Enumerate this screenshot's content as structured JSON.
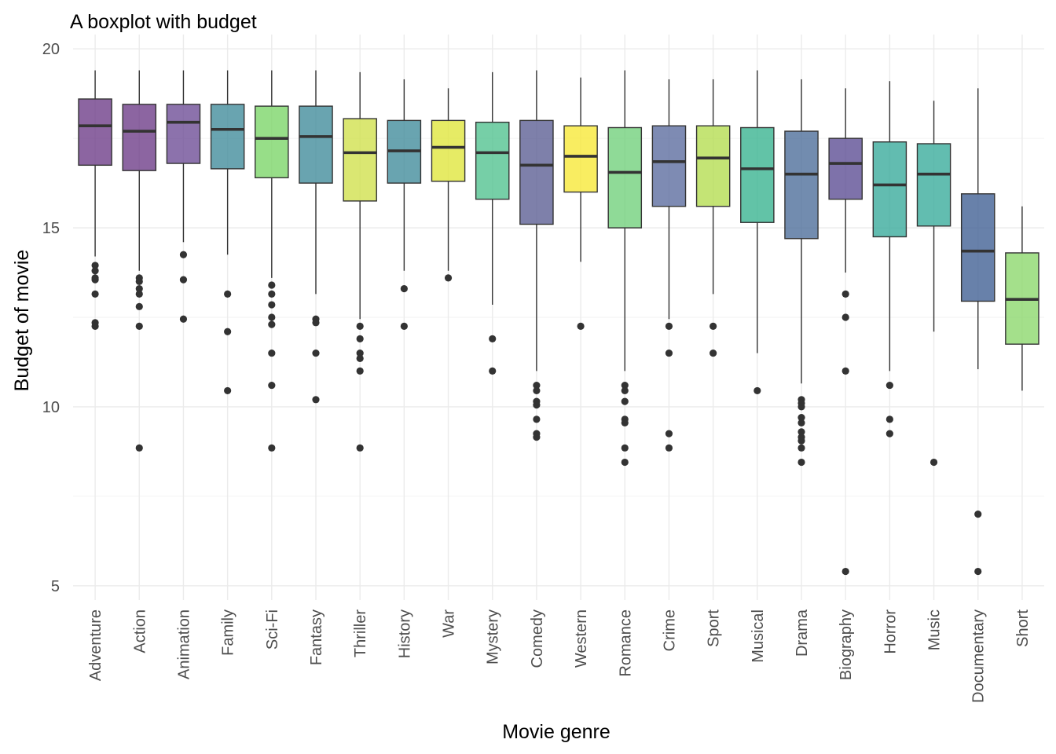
{
  "chart_data": {
    "type": "boxplot",
    "title": "A boxplot with budget",
    "xlabel": "Movie genre",
    "ylabel": "Budget of movie",
    "ylim": [
      4.6,
      20.4
    ],
    "yticks": [
      5,
      10,
      15,
      20
    ],
    "grid": true,
    "categories": [
      "Adventure",
      "Action",
      "Animation",
      "Family",
      "Sci-Fi",
      "Fantasy",
      "Thriller",
      "History",
      "War",
      "Mystery",
      "Comedy",
      "Western",
      "Romance",
      "Crime",
      "Sport",
      "Musical",
      "Drama",
      "Biography",
      "Horror",
      "Music",
      "Documentary",
      "Short"
    ],
    "boxes": [
      {
        "genre": "Adventure",
        "color": "#6b3a87",
        "whisker_low": 14.2,
        "q1": 16.75,
        "median": 17.85,
        "q3": 18.6,
        "whisker_high": 19.4,
        "outliers": [
          13.95,
          13.8,
          13.6,
          13.55,
          13.15,
          12.35,
          12.25
        ]
      },
      {
        "genre": "Action",
        "color": "#6b3a87",
        "whisker_low": 13.8,
        "q1": 16.6,
        "median": 17.7,
        "q3": 18.45,
        "whisker_high": 19.4,
        "outliers": [
          13.6,
          13.5,
          13.3,
          13.15,
          12.8,
          12.25,
          8.85
        ]
      },
      {
        "genre": "Animation",
        "color": "#6b4a95",
        "whisker_low": 14.6,
        "q1": 16.8,
        "median": 17.95,
        "q3": 18.45,
        "whisker_high": 19.4,
        "outliers": [
          14.25,
          13.55,
          12.45
        ]
      },
      {
        "genre": "Family",
        "color": "#3f8a9a",
        "whisker_low": 14.25,
        "q1": 16.65,
        "median": 17.75,
        "q3": 18.45,
        "whisker_high": 19.4,
        "outliers": [
          13.15,
          12.1,
          10.45
        ]
      },
      {
        "genre": "Sci-Fi",
        "color": "#7ad567",
        "whisker_low": 13.6,
        "q1": 16.4,
        "median": 17.5,
        "q3": 18.4,
        "whisker_high": 19.4,
        "outliers": [
          13.4,
          13.15,
          12.85,
          12.5,
          12.3,
          11.5,
          10.6,
          8.85
        ]
      },
      {
        "genre": "Fantasy",
        "color": "#3f8a9a",
        "whisker_low": 13.15,
        "q1": 16.25,
        "median": 17.55,
        "q3": 18.4,
        "whisker_high": 19.4,
        "outliers": [
          12.45,
          12.35,
          11.5,
          10.2
        ]
      },
      {
        "genre": "Thriller",
        "color": "#cfe04a",
        "whisker_low": 12.45,
        "q1": 15.75,
        "median": 17.1,
        "q3": 18.05,
        "whisker_high": 19.35,
        "outliers": [
          12.25,
          11.9,
          11.5,
          11.35,
          11.0,
          8.85
        ]
      },
      {
        "genre": "History",
        "color": "#3f8a9a",
        "whisker_low": 13.8,
        "q1": 16.25,
        "median": 17.15,
        "q3": 18.0,
        "whisker_high": 19.15,
        "outliers": [
          13.3,
          12.25
        ]
      },
      {
        "genre": "War",
        "color": "#dfe63a",
        "whisker_low": 13.8,
        "q1": 16.3,
        "median": 17.25,
        "q3": 18.0,
        "whisker_high": 18.9,
        "outliers": [
          13.6
        ]
      },
      {
        "genre": "Mystery",
        "color": "#4fc28e",
        "whisker_low": 12.85,
        "q1": 15.8,
        "median": 17.1,
        "q3": 17.95,
        "whisker_high": 19.35,
        "outliers": [
          11.9,
          11.0
        ]
      },
      {
        "genre": "Comedy",
        "color": "#5a5c92",
        "whisker_low": 11.0,
        "q1": 15.1,
        "median": 16.75,
        "q3": 18.0,
        "whisker_high": 19.4,
        "outliers": [
          10.6,
          10.45,
          10.15,
          10.05,
          9.65,
          9.25,
          9.15
        ]
      },
      {
        "genre": "Western",
        "color": "#f7e835",
        "whisker_low": 14.05,
        "q1": 16.0,
        "median": 17.0,
        "q3": 17.85,
        "whisker_high": 19.2,
        "outliers": [
          12.25
        ]
      },
      {
        "genre": "Romance",
        "color": "#6fcf7a",
        "whisker_low": 11.0,
        "q1": 15.0,
        "median": 16.55,
        "q3": 17.8,
        "whisker_high": 19.4,
        "outliers": [
          10.6,
          10.45,
          10.15,
          9.65,
          9.55,
          8.85,
          8.45
        ]
      },
      {
        "genre": "Crime",
        "color": "#5a6a9e",
        "whisker_low": 12.45,
        "q1": 15.6,
        "median": 16.85,
        "q3": 17.85,
        "whisker_high": 19.15,
        "outliers": [
          12.25,
          11.5,
          9.25,
          8.85
        ]
      },
      {
        "genre": "Sport",
        "color": "#b4dd4e",
        "whisker_low": 13.15,
        "q1": 15.6,
        "median": 16.95,
        "q3": 17.85,
        "whisker_high": 19.15,
        "outliers": [
          12.25,
          11.5
        ]
      },
      {
        "genre": "Musical",
        "color": "#36b28e",
        "whisker_low": 11.5,
        "q1": 15.15,
        "median": 16.65,
        "q3": 17.8,
        "whisker_high": 19.4,
        "outliers": [
          10.45
        ]
      },
      {
        "genre": "Drama",
        "color": "#4a6b98",
        "whisker_low": 10.65,
        "q1": 14.7,
        "median": 16.5,
        "q3": 17.7,
        "whisker_high": 19.15,
        "outliers": [
          10.2,
          10.1,
          10.0,
          9.7,
          9.55,
          9.3,
          9.15,
          9.05,
          8.85,
          8.45
        ]
      },
      {
        "genre": "Biography",
        "color": "#5a4a92",
        "whisker_low": 13.75,
        "q1": 15.8,
        "median": 16.8,
        "q3": 17.5,
        "whisker_high": 18.9,
        "outliers": [
          13.15,
          12.5,
          11.0,
          5.4
        ]
      },
      {
        "genre": "Horror",
        "color": "#36a99a",
        "whisker_low": 11.0,
        "q1": 14.75,
        "median": 16.2,
        "q3": 17.4,
        "whisker_high": 19.1,
        "outliers": [
          10.6,
          9.65,
          9.25
        ]
      },
      {
        "genre": "Music",
        "color": "#36ab9a",
        "whisker_low": 12.1,
        "q1": 15.05,
        "median": 16.5,
        "q3": 17.35,
        "whisker_high": 18.55,
        "outliers": [
          8.45
        ]
      },
      {
        "genre": "Documentary",
        "color": "#3e5e92",
        "whisker_low": 11.05,
        "q1": 12.95,
        "median": 14.35,
        "q3": 15.95,
        "whisker_high": 18.9,
        "outliers": [
          7.0,
          5.4
        ]
      },
      {
        "genre": "Short",
        "color": "#8bd76a",
        "whisker_low": 10.45,
        "q1": 11.75,
        "median": 13.0,
        "q3": 14.3,
        "whisker_high": 15.6,
        "outliers": []
      }
    ]
  }
}
